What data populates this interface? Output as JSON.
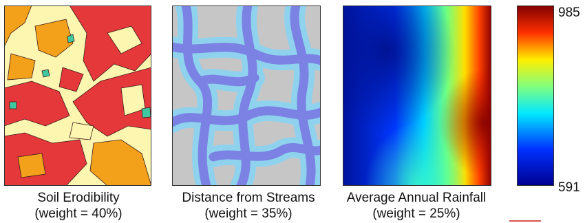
{
  "panels": [
    {
      "title": "Soil Erodibility",
      "weight": "(weight = 40%)"
    },
    {
      "title": "Distance from Streams",
      "weight": "(weight = 35%)"
    },
    {
      "title": "Average Annual Rainfall",
      "weight": "(weight = 25%)"
    }
  ],
  "legend": {
    "max": "985",
    "min": "591"
  },
  "colors": {
    "soil_red": "#e5383b",
    "soil_orange": "#f3a01b",
    "soil_cream": "#fdf6b0",
    "soil_teal": "#3fc9a0",
    "stream_gray": "#c6c6c6",
    "stream_light": "#8fd2ee",
    "stream_blue": "#7b82e4",
    "accent_mark": "#d9534f"
  }
}
